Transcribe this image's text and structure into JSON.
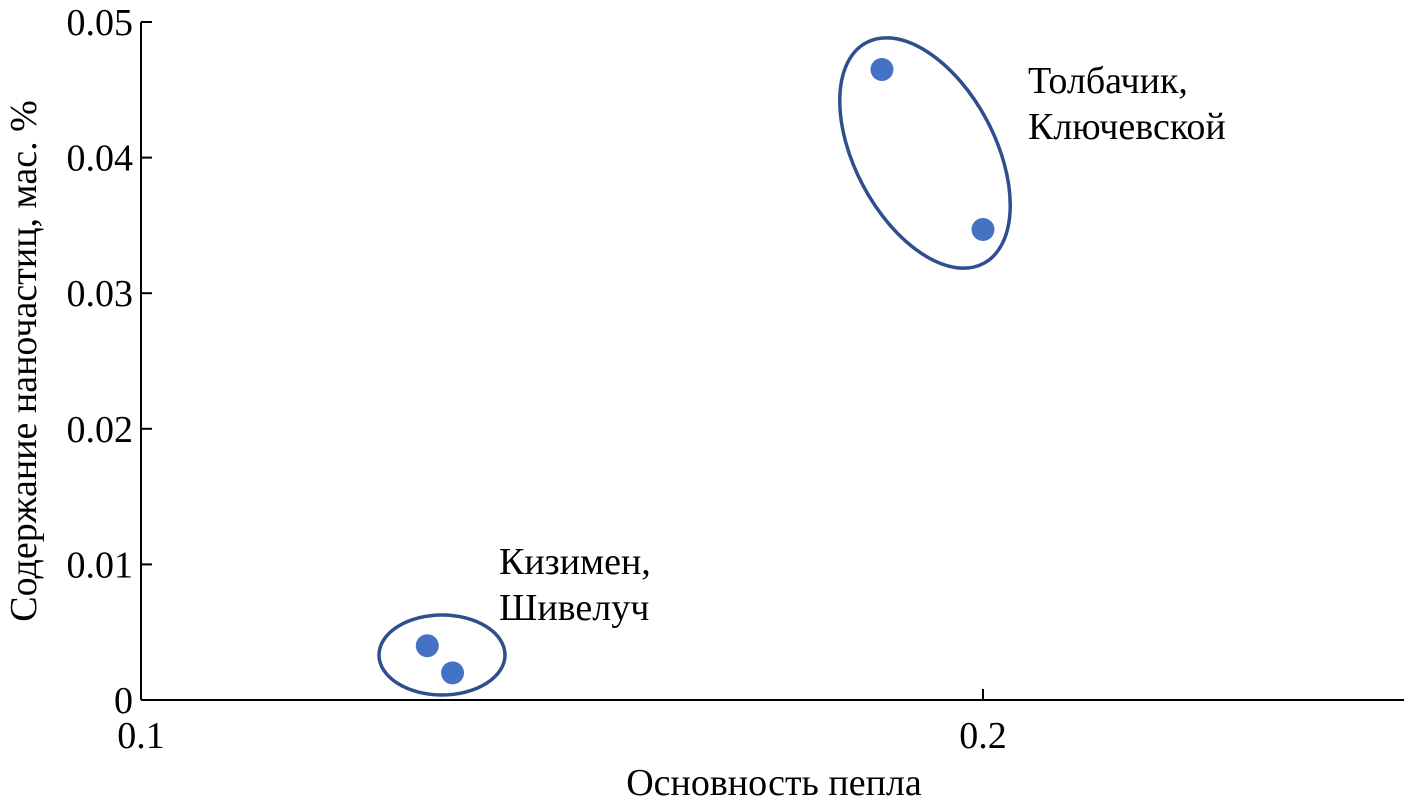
{
  "chart_data": {
    "type": "scatter",
    "xlabel": "Основность пепла",
    "ylabel": "Содержание наночастиц, мас. %",
    "xlim": [
      0.1,
      0.25
    ],
    "ylim": [
      0,
      0.05
    ],
    "x_ticks": [
      0.1,
      0.2
    ],
    "x_tick_labels": [
      "0.1",
      "0.2"
    ],
    "y_ticks": [
      0,
      0.01,
      0.02,
      0.03,
      0.04,
      0.05
    ],
    "y_tick_labels": [
      "0",
      "0.01",
      "0.02",
      "0.03",
      "0.04",
      "0.05"
    ],
    "grid": false,
    "legend": "none",
    "points": [
      {
        "x": 0.134,
        "y": 0.004
      },
      {
        "x": 0.137,
        "y": 0.002
      },
      {
        "x": 0.188,
        "y": 0.0465
      },
      {
        "x": 0.2,
        "y": 0.0347
      }
    ],
    "groups": [
      {
        "label_lines": [
          "Кизимен,",
          "Шивелуч"
        ]
      },
      {
        "label_lines": [
          "Толбачик,",
          "Ключевской"
        ]
      }
    ],
    "colors": {
      "point": "#4472c4",
      "ellipse": "#2e4e8f"
    }
  }
}
